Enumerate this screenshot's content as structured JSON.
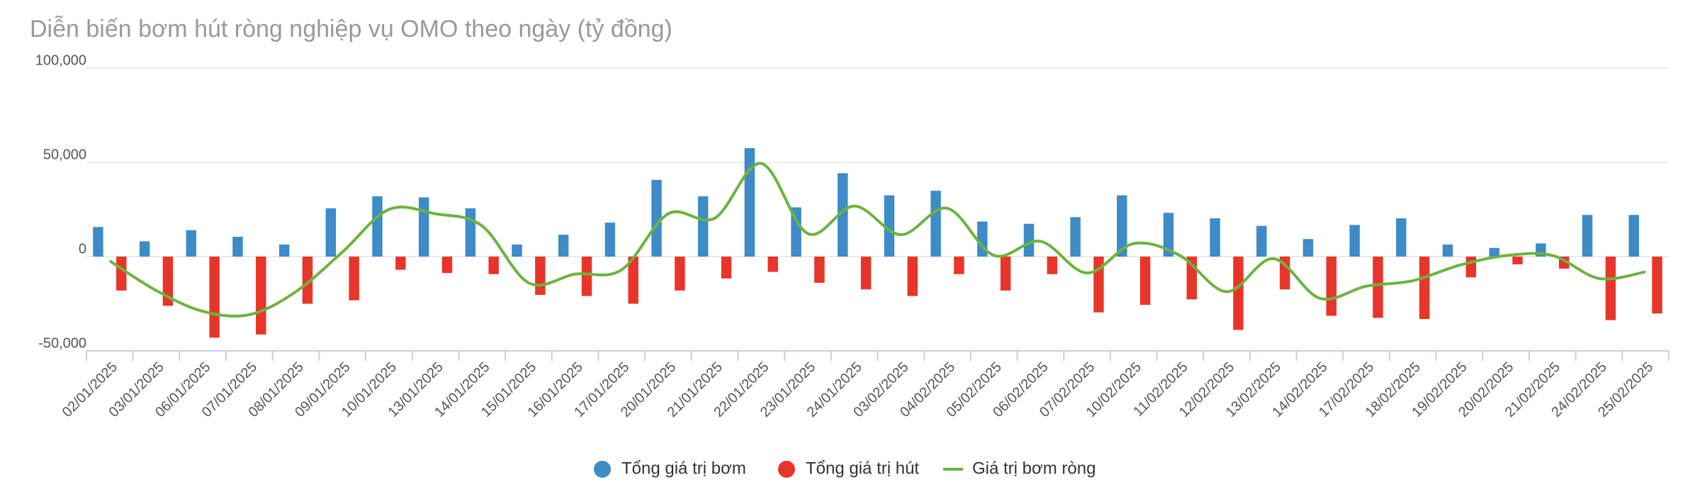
{
  "chart_data": {
    "type": "bar-line",
    "title": "Diễn biến bơm hút ròng nghiệp vụ OMO theo ngày (tỷ đồng)",
    "categories": [
      "02/01/2025",
      "03/01/2025",
      "06/01/2025",
      "07/01/2025",
      "08/01/2025",
      "09/01/2025",
      "10/01/2025",
      "13/01/2025",
      "14/01/2025",
      "15/01/2025",
      "16/01/2025",
      "17/01/2025",
      "20/01/2025",
      "21/01/2025",
      "22/01/2025",
      "23/01/2025",
      "24/01/2025",
      "03/02/2025",
      "04/02/2025",
      "05/02/2025",
      "06/02/2025",
      "07/02/2025",
      "10/02/2025",
      "11/02/2025",
      "12/02/2025",
      "13/02/2025",
      "14/02/2025",
      "17/02/2025",
      "18/02/2025",
      "19/02/2025",
      "20/02/2025",
      "21/02/2025",
      "24/02/2025",
      "25/02/2025"
    ],
    "series": [
      {
        "name": "Tổng giá trị bơm",
        "type": "bar",
        "color": "#3d8bc7",
        "values": [
          15700,
          8100,
          14000,
          10500,
          6400,
          25600,
          32000,
          31400,
          25600,
          6400,
          11600,
          18000,
          40700,
          32000,
          57500,
          26100,
          44200,
          32500,
          34900,
          18600,
          17400,
          20900,
          32500,
          23200,
          20300,
          16300,
          9300,
          16800,
          20300,
          6400,
          4600,
          7000,
          22100,
          22100
        ]
      },
      {
        "name": "Tổng giá trị hút",
        "type": "bar",
        "color": "#e8352a",
        "values": [
          -18000,
          -26100,
          -43000,
          -41300,
          -25000,
          -23200,
          -7000,
          -8700,
          -9300,
          -20300,
          -20900,
          -25000,
          -18000,
          -11600,
          -8100,
          -13900,
          -17400,
          -20900,
          -9300,
          -18000,
          -9300,
          -29600,
          -25600,
          -22700,
          -38900,
          -17400,
          -31400,
          -32500,
          -33100,
          -11000,
          -4100,
          -6400,
          -33700,
          -30200
        ]
      },
      {
        "name": "Giá trị bơm ròng",
        "type": "line",
        "color": "#6db33f",
        "values": [
          -2300,
          -18000,
          -29000,
          -30800,
          -18600,
          2400,
          25000,
          22700,
          16300,
          -13900,
          -9300,
          -7000,
          22700,
          20400,
          49400,
          12200,
          26800,
          11600,
          25600,
          600,
          8100,
          -8700,
          6900,
          500,
          -18600,
          -1100,
          -22100,
          -15700,
          -12800,
          -4600,
          500,
          600,
          -11600,
          -8100
        ]
      }
    ],
    "ylim": [
      -50000,
      100000
    ],
    "yticks": [
      {
        "value": -50000,
        "label": "-50,000"
      },
      0,
      {
        "value": 50000,
        "label": "50,000"
      },
      {
        "value": 100000,
        "label": "100,000"
      }
    ],
    "grid": true
  }
}
